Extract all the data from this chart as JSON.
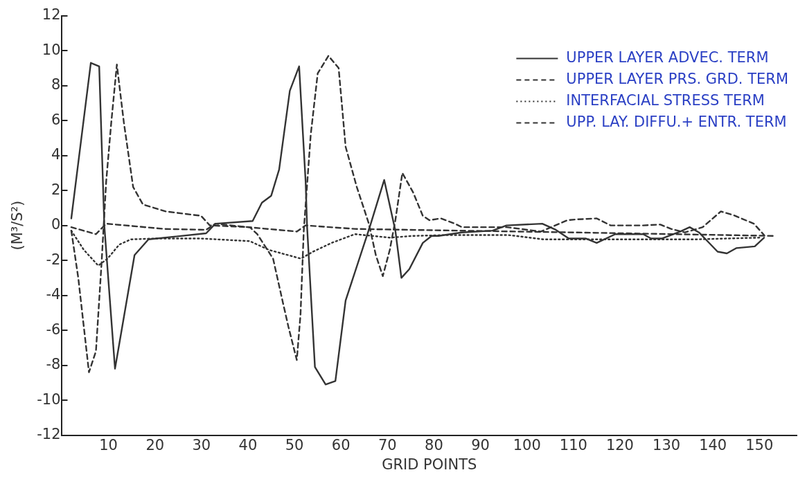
{
  "chart_data": {
    "type": "line",
    "xlabel": "GRID POINTS",
    "ylabel": "(M³/S²)",
    "xlim": [
      0,
      158
    ],
    "xticks": [
      10,
      20,
      30,
      40,
      50,
      60,
      70,
      80,
      90,
      100,
      110,
      120,
      130,
      140,
      150
    ],
    "ylim": [
      -12,
      12
    ],
    "yticks": [
      -12,
      -10,
      -8,
      -6,
      -4,
      -2,
      0,
      2,
      4,
      6,
      8,
      10,
      12
    ],
    "grid": false,
    "legend": "top right",
    "marker": "none",
    "series": [
      {
        "name": "UPPER LAYER ADVEC. TERM",
        "color": "#333333",
        "line_style": "solid",
        "x": [
          2,
          6.2,
          8,
          9.1,
          11.4,
          15.6,
          18.6,
          31,
          33,
          41,
          43,
          45,
          46.7,
          49,
          51,
          52.4,
          52.7,
          54.4,
          56.7,
          58.8,
          61,
          66.3,
          69.3,
          71.7,
          73,
          74.7,
          77.6,
          79.5,
          81,
          86,
          92.6,
          95.6,
          103.3,
          106.2,
          109,
          112.7,
          115,
          119,
          125,
          126.7,
          129,
          133,
          135,
          137,
          141,
          143,
          145,
          149,
          151
        ],
        "values": [
          0.4,
          9.3,
          9.1,
          0,
          -8.2,
          -1.7,
          -0.8,
          -0.45,
          0.1,
          0.25,
          1.3,
          1.7,
          3.2,
          7.7,
          9.1,
          2.5,
          0,
          -8.1,
          -9.1,
          -8.9,
          -4.3,
          0,
          2.6,
          -0.3,
          -3,
          -2.5,
          -1,
          -0.6,
          -0.6,
          -0.4,
          -0.3,
          0,
          0.1,
          -0.25,
          -0.75,
          -0.75,
          -1,
          -0.5,
          -0.5,
          -0.75,
          -0.75,
          -0.35,
          -0.1,
          -0.4,
          -1.5,
          -1.6,
          -1.3,
          -1.2,
          -0.7
        ]
      },
      {
        "name": "UPPER LAYER PRS. GRD. TERM",
        "color": "#333333",
        "line_style": "dashed",
        "x": [
          2,
          3.5,
          5.8,
          7.3,
          8.5,
          9.5,
          10.6,
          11.8,
          13.3,
          15.3,
          17.4,
          22.3,
          29.9,
          31.8,
          40.4,
          42,
          45.4,
          47.5,
          48.7,
          50.5,
          51.3,
          52,
          53.5,
          55,
          57.3,
          59.5,
          61,
          63.4,
          66,
          67.5,
          69,
          70.5,
          71.7,
          73.2,
          75.5,
          77.6,
          79,
          81.5,
          84.5,
          86,
          91,
          95.6,
          103,
          107,
          108.7,
          111,
          115,
          118,
          125,
          128.7,
          131,
          134,
          137.8,
          141.7,
          144.3,
          148.8,
          151
        ],
        "values": [
          -0.3,
          -3,
          -8.4,
          -7.2,
          -2.2,
          2.5,
          5.9,
          9.2,
          5.9,
          2.2,
          1.2,
          0.8,
          0.55,
          0,
          -0.1,
          -0.5,
          -1.9,
          -4.4,
          -5.8,
          -7.7,
          -5.1,
          -0.3,
          5.2,
          8.7,
          9.7,
          9,
          4.5,
          2.2,
          0.1,
          -1.7,
          -2.9,
          -1.4,
          0.3,
          3,
          1.9,
          0.55,
          0.3,
          0.4,
          0.1,
          -0.1,
          -0.1,
          -0.1,
          -0.35,
          0.1,
          0.3,
          0.35,
          0.4,
          0,
          0,
          0.05,
          -0.2,
          -0.4,
          -0.1,
          0.8,
          0.6,
          0.1,
          -0.55
        ]
      },
      {
        "name": "INTERFACIAL STRESS TERM",
        "color": "#333333",
        "line_style": "dotted",
        "x": [
          2,
          4.7,
          7.8,
          9.8,
          12.3,
          14.8,
          19.8,
          29.9,
          40.4,
          44.5,
          51.4,
          54,
          58,
          63,
          70.5,
          75.5,
          83,
          96,
          103.6,
          111,
          126,
          136,
          150
        ],
        "values": [
          -0.3,
          -1.4,
          -2.3,
          -1.9,
          -1.1,
          -0.8,
          -0.75,
          -0.75,
          -0.9,
          -1.4,
          -1.9,
          -1.5,
          -1,
          -0.5,
          -0.7,
          -0.6,
          -0.55,
          -0.55,
          -0.8,
          -0.8,
          -0.8,
          -0.8,
          -0.7
        ]
      },
      {
        "name": "UPP. LAY. DIFFU.+ ENTR. TERM",
        "color": "#333333",
        "line_style": "dashed",
        "x": [
          2,
          7.3,
          9.5,
          22,
          31,
          33,
          40,
          50.5,
          52.4,
          63,
          85.6,
          110,
          153
        ],
        "values": [
          -0.1,
          -0.5,
          0.1,
          -0.2,
          -0.25,
          0.1,
          -0.1,
          -0.35,
          0,
          -0.2,
          -0.3,
          -0.4,
          -0.6
        ]
      }
    ]
  }
}
